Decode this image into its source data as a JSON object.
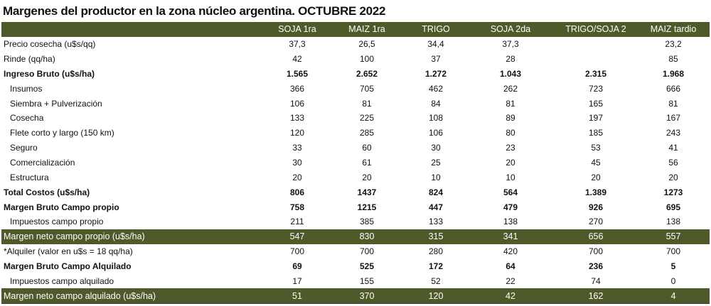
{
  "title": "Margenes del productor en la zona núcleo argentina. OCTUBRE 2022",
  "columns": [
    "",
    "SOJA 1ra",
    "MAIZ 1ra",
    "TRIGO",
    "SOJA 2da",
    "TRIGO/SOJA 2",
    "MAIZ tardio"
  ],
  "rows": [
    {
      "label": "Precio cosecha (u$s/qq)",
      "values": [
        "37,3",
        "26,5",
        "34,4",
        "37,3",
        "",
        "23,2"
      ]
    },
    {
      "label": "Rinde (qq/ha)",
      "values": [
        "42",
        "100",
        "37",
        "28",
        "",
        "85"
      ]
    },
    {
      "label": "Ingreso Bruto (u$s/ha)",
      "values": [
        "1.565",
        "2.652",
        "1.272",
        "1.043",
        "2.315",
        "1.968"
      ]
    },
    {
      "label": "Insumos",
      "values": [
        "366",
        "705",
        "462",
        "262",
        "723",
        "666"
      ]
    },
    {
      "label": "Siembra + Pulverización",
      "values": [
        "106",
        "81",
        "84",
        "81",
        "165",
        "81"
      ]
    },
    {
      "label": "Cosecha",
      "values": [
        "133",
        "225",
        "108",
        "89",
        "197",
        "167"
      ]
    },
    {
      "label": "Flete corto y largo (150 km)",
      "values": [
        "120",
        "285",
        "106",
        "80",
        "185",
        "243"
      ]
    },
    {
      "label": "Seguro",
      "values": [
        "33",
        "60",
        "30",
        "23",
        "53",
        "41"
      ]
    },
    {
      "label": "Comercialización",
      "values": [
        "30",
        "61",
        "25",
        "20",
        "45",
        "56"
      ]
    },
    {
      "label": "Estructura",
      "values": [
        "20",
        "20",
        "10",
        "10",
        "20",
        "20"
      ]
    },
    {
      "label": "Total Costos (u$s/ha)",
      "values": [
        "806",
        "1437",
        "824",
        "564",
        "1.389",
        "1273"
      ]
    },
    {
      "label": "Margen Bruto Campo propio",
      "values": [
        "758",
        "1215",
        "447",
        "479",
        "926",
        "695"
      ]
    },
    {
      "label": "Impuestos campo propio",
      "values": [
        "211",
        "385",
        "133",
        "138",
        "270",
        "138"
      ]
    },
    {
      "label": "Margen neto campo propio (u$s/ha)",
      "values": [
        "547",
        "830",
        "315",
        "341",
        "656",
        "557"
      ]
    },
    {
      "label": "*Alquiler (valor en u$s = 18 qq/ha)",
      "values": [
        "700",
        "700",
        "280",
        "420",
        "700",
        "700"
      ]
    },
    {
      "label": "Margen Bruto Campo Alquilado",
      "values": [
        "69",
        "525",
        "172",
        "64",
        "236",
        "5"
      ]
    },
    {
      "label": "Impuestos campo alquilado",
      "values": [
        "17",
        "155",
        "52",
        "22",
        "74",
        "0"
      ]
    },
    {
      "label": "Margen neto campo alquilado (u$s/ha)",
      "values": [
        "51",
        "370",
        "120",
        "42",
        "162",
        "4"
      ]
    }
  ],
  "colors": {
    "header_band": "#4e5a2a",
    "header_text": "#ffffff"
  }
}
